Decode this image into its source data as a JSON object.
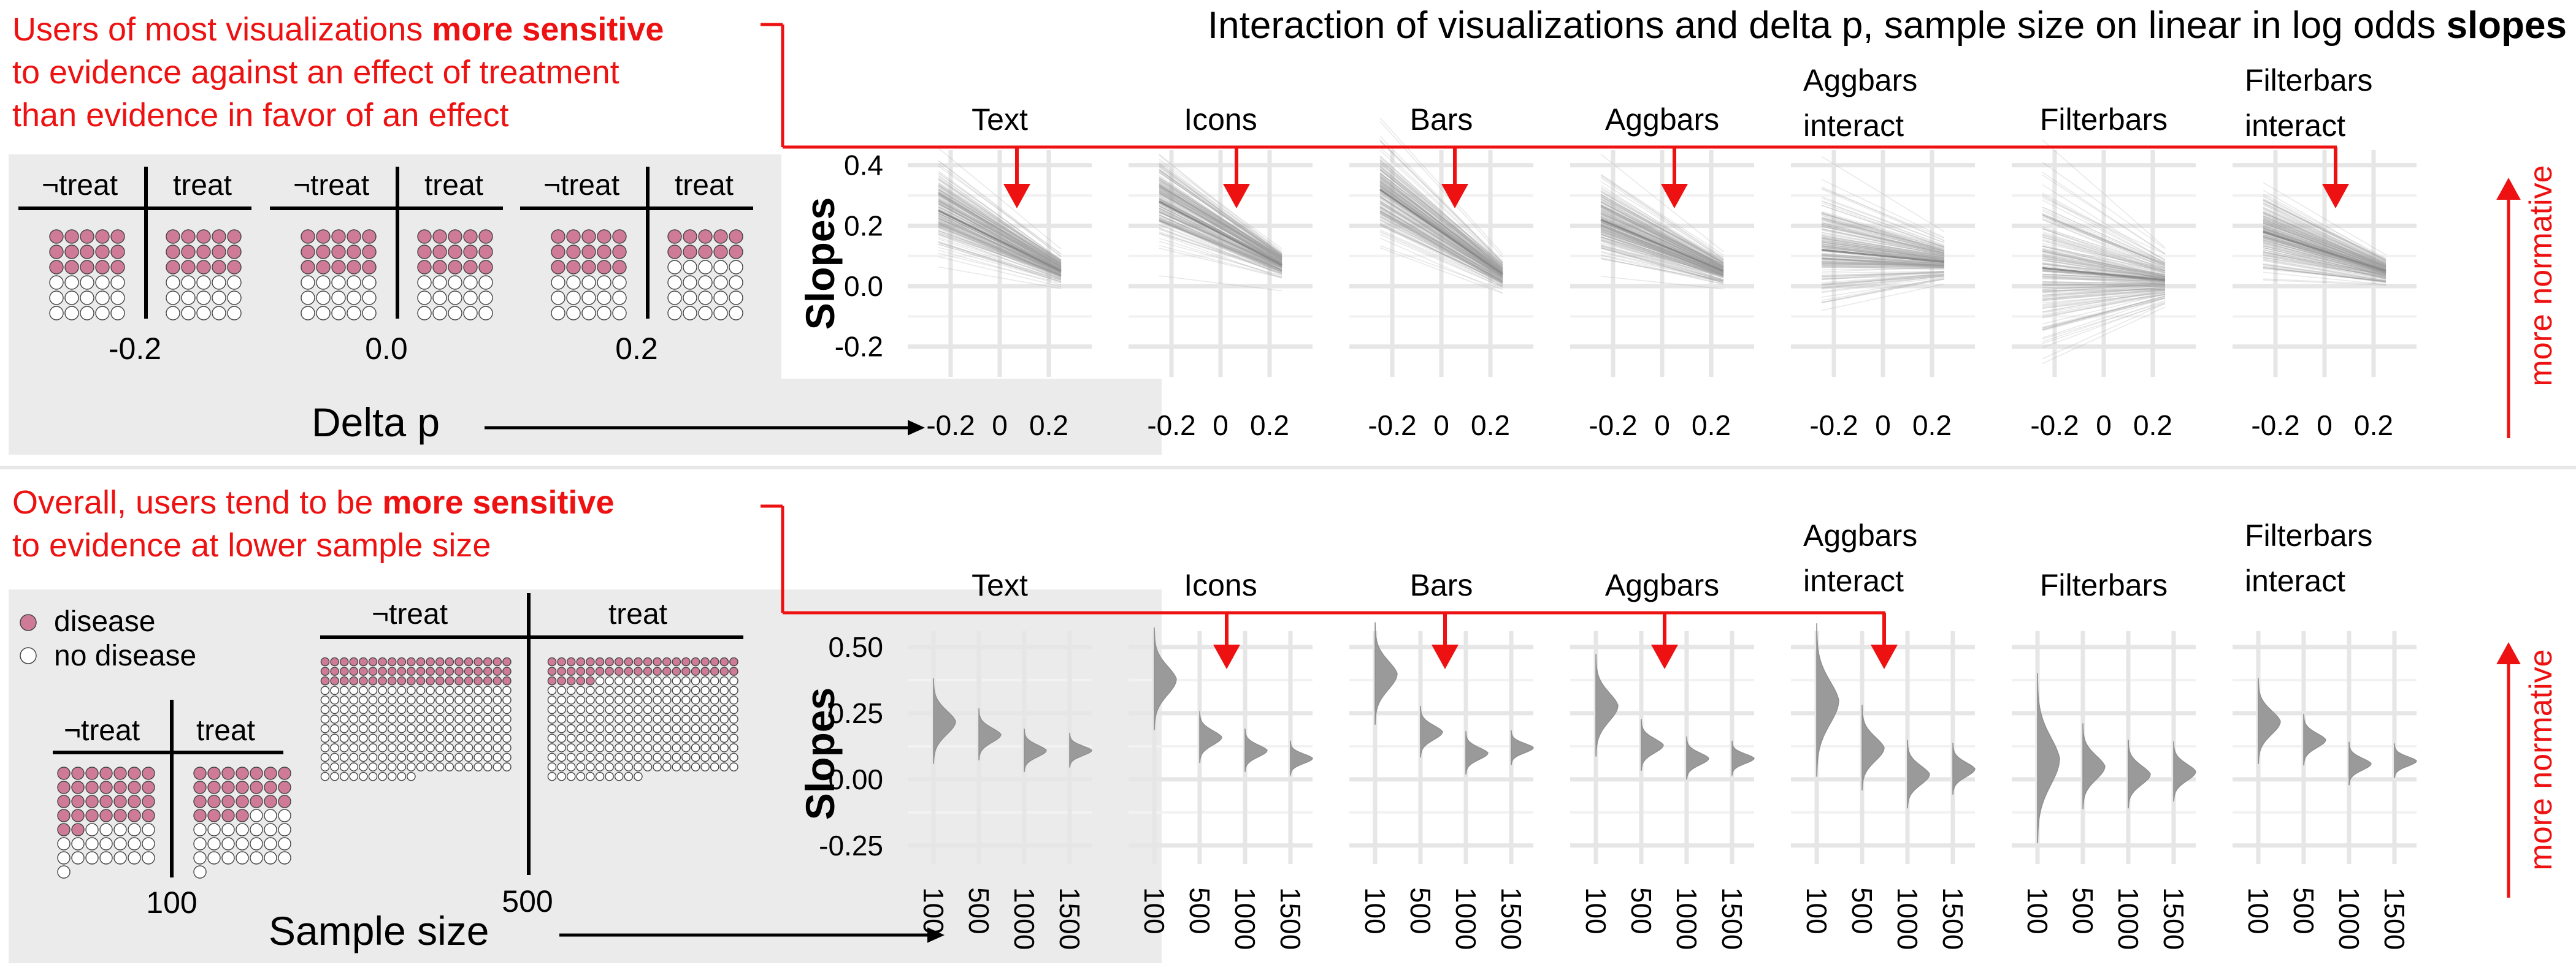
{
  "title": {
    "prefix": "Interaction of visualizations and delta p, sample size on linear in log odds ",
    "bold": "slopes"
  },
  "annotations": {
    "top": {
      "lines": [
        [
          {
            "text": "Users of most visualizations ",
            "bold": false
          },
          {
            "text": "more sensitive",
            "bold": true
          }
        ],
        [
          {
            "text": "to evidence against an effect of treatment",
            "bold": false
          }
        ],
        [
          {
            "text": "than evidence in favor of an effect",
            "bold": false
          }
        ]
      ],
      "arrow_targets": [
        "Text",
        "Icons",
        "Bars",
        "Aggbars",
        "Filterbars interact"
      ]
    },
    "bottom": {
      "lines": [
        [
          {
            "text": "Overall, users tend to be ",
            "bold": false
          },
          {
            "text": "more sensitive",
            "bold": true
          }
        ],
        [
          {
            "text": "to evidence at lower sample size",
            "bold": false
          }
        ]
      ],
      "arrow_targets": [
        "Icons",
        "Bars",
        "Aggbars",
        "Aggbars interact"
      ]
    },
    "more_normative": "more normative"
  },
  "legend_panel_top": {
    "columns": [
      "¬treat",
      "treat"
    ],
    "examples": [
      {
        "label": "-0.2",
        "no_treat_disease": 15,
        "treat_disease": 15
      },
      {
        "label": "0.0",
        "no_treat_disease": 15,
        "treat_disease": 15
      },
      {
        "label": "0.2",
        "no_treat_disease": 15,
        "treat_disease": 10
      }
    ],
    "total_per_group": 30,
    "axis_label": "Delta p"
  },
  "legend_panel_bottom": {
    "legend": [
      {
        "label": "disease",
        "color": "#cf7b98"
      },
      {
        "label": "no disease",
        "color": "#ffffff"
      }
    ],
    "columns": [
      "¬treat",
      "treat"
    ],
    "examples": [
      {
        "label": "100",
        "total_per_group": 50,
        "no_treat_disease": 30,
        "treat_disease": 25
      },
      {
        "label": "500",
        "total_per_group": 250,
        "no_treat_disease": 60,
        "treat_disease": 45
      }
    ],
    "axis_label": "Sample size"
  },
  "colors": {
    "accent": "#ee1111",
    "disease": "#cf7b98",
    "series": "#9a9a9a",
    "panel_bg": "#ebebeb",
    "grid": "#e6e6e6"
  },
  "chart_data": [
    {
      "type": "line",
      "title": "",
      "facets": [
        "Text",
        "Icons",
        "Bars",
        "Aggbars",
        "Aggbars interact",
        "Filterbars",
        "Filterbars interact"
      ],
      "ylabel": "Slopes",
      "ylim": [
        -0.3,
        0.45
      ],
      "yticks": [
        0.4,
        0.2,
        0.0,
        -0.2
      ],
      "ytick_labels": [
        "0.4",
        "0.2",
        "0.0",
        "-0.2"
      ],
      "xlim": [
        -0.3,
        0.3
      ],
      "xticks": [
        -0.2,
        0,
        0.2
      ],
      "xtick_labels": [
        "-0.2",
        "0",
        "0.2"
      ],
      "series": [
        {
          "facet": "Text",
          "mean_at": [
            -0.25,
            0.25
          ],
          "mean": [
            0.25,
            0.05
          ],
          "spread_at": [
            0.07,
            0.02
          ]
        },
        {
          "facet": "Icons",
          "mean_at": [
            -0.25,
            0.25
          ],
          "mean": [
            0.28,
            0.07
          ],
          "spread_at": [
            0.07,
            0.02
          ]
        },
        {
          "facet": "Bars",
          "mean_at": [
            -0.25,
            0.25
          ],
          "mean": [
            0.32,
            0.04
          ],
          "spread_at": [
            0.08,
            0.02
          ]
        },
        {
          "facet": "Aggbars",
          "mean_at": [
            -0.25,
            0.25
          ],
          "mean": [
            0.22,
            0.05
          ],
          "spread_at": [
            0.07,
            0.02
          ]
        },
        {
          "facet": "Aggbars interact",
          "mean_at": [
            -0.25,
            0.25
          ],
          "mean": [
            0.12,
            0.08
          ],
          "spread_at": [
            0.09,
            0.03
          ]
        },
        {
          "facet": "Filterbars",
          "mean_at": [
            -0.25,
            0.25
          ],
          "mean": [
            0.06,
            0.02
          ],
          "spread_at": [
            0.15,
            0.04
          ]
        },
        {
          "facet": "Filterbars interact",
          "mean_at": [
            -0.25,
            0.25
          ],
          "mean": [
            0.18,
            0.05
          ],
          "spread_at": [
            0.07,
            0.02
          ]
        }
      ]
    },
    {
      "type": "area",
      "title": "",
      "facets": [
        "Text",
        "Icons",
        "Bars",
        "Aggbars",
        "Aggbars interact",
        "Filterbars",
        "Filterbars interact"
      ],
      "ylabel": "Slopes",
      "ylim": [
        -0.32,
        0.56
      ],
      "yticks": [
        0.5,
        0.25,
        0.0,
        -0.25
      ],
      "ytick_labels": [
        "0.50",
        "0.25",
        "0.00",
        "-0.25"
      ],
      "categories": [
        "100",
        "500",
        "1000",
        "1500"
      ],
      "series": [
        {
          "facet": "Text",
          "mode": [
            0.22,
            0.17,
            0.11,
            0.11
          ],
          "sd": [
            0.05,
            0.03,
            0.025,
            0.02
          ]
        },
        {
          "facet": "Icons",
          "mode": [
            0.38,
            0.16,
            0.11,
            0.08
          ],
          "sd": [
            0.06,
            0.03,
            0.025,
            0.02
          ]
        },
        {
          "facet": "Bars",
          "mode": [
            0.4,
            0.18,
            0.1,
            0.12
          ],
          "sd": [
            0.06,
            0.03,
            0.025,
            0.02
          ]
        },
        {
          "facet": "Aggbars",
          "mode": [
            0.28,
            0.13,
            0.08,
            0.08
          ],
          "sd": [
            0.06,
            0.03,
            0.025,
            0.02
          ]
        },
        {
          "facet": "Aggbars interact",
          "mode": [
            0.3,
            0.12,
            0.02,
            0.04
          ],
          "sd": [
            0.09,
            0.05,
            0.04,
            0.03
          ]
        },
        {
          "facet": "Filterbars",
          "mode": [
            0.08,
            0.05,
            0.02,
            0.03
          ],
          "sd": [
            0.1,
            0.05,
            0.04,
            0.035
          ]
        },
        {
          "facet": "Filterbars interact",
          "mode": [
            0.22,
            0.15,
            0.06,
            0.07
          ],
          "sd": [
            0.05,
            0.03,
            0.025,
            0.02
          ]
        }
      ]
    }
  ]
}
